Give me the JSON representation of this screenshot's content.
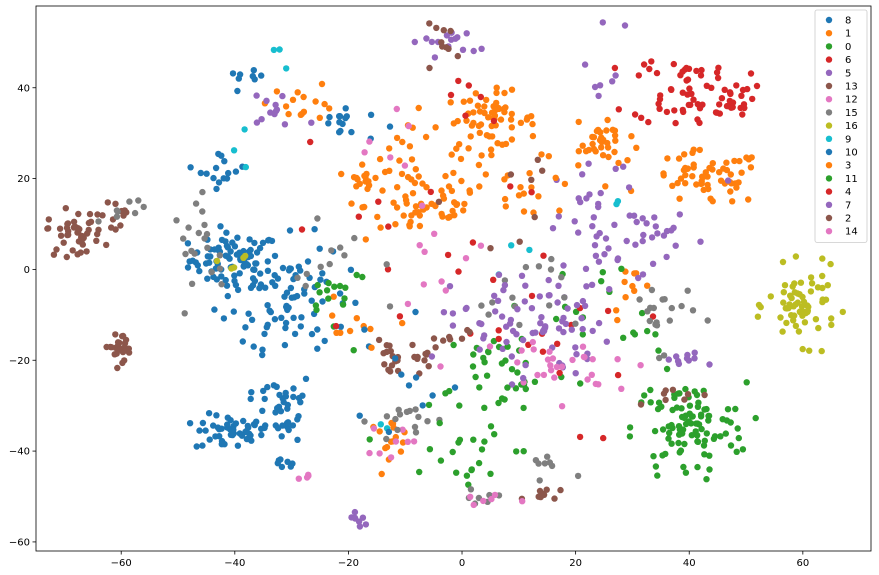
{
  "chart_data": {
    "type": "scatter",
    "title": "",
    "xlabel": "",
    "ylabel": "",
    "xlim": [
      -75,
      72
    ],
    "ylim": [
      -62,
      58
    ],
    "xticks": [
      -60,
      -40,
      -20,
      0,
      20,
      40,
      60
    ],
    "yticks": [
      -60,
      -40,
      -20,
      0,
      20,
      40
    ],
    "grid": false,
    "legend_position": "top-right",
    "series": [
      {
        "name": "8",
        "color": "#1f77b4",
        "clusters": [
          {
            "cx": -40,
            "cy": 2,
            "sx": 4,
            "sy": 3,
            "n": 80
          },
          {
            "cx": -41,
            "cy": -36,
            "sx": 3,
            "sy": 2,
            "n": 45
          },
          {
            "cx": -32,
            "cy": -30,
            "sx": 3,
            "sy": 4,
            "n": 40
          },
          {
            "cx": -30,
            "cy": -5,
            "sx": 5,
            "sy": 6,
            "n": 55
          },
          {
            "cx": -21,
            "cy": 32,
            "sx": 3,
            "sy": 2,
            "n": 15
          },
          {
            "cx": -31,
            "cy": -41,
            "sx": 1,
            "sy": 2,
            "n": 8
          },
          {
            "cx": -42,
            "cy": 22,
            "sx": 2,
            "sy": 2,
            "n": 15
          },
          {
            "cx": -38,
            "cy": 42,
            "sx": 1.5,
            "sy": 0.8,
            "n": 8
          }
        ]
      },
      {
        "name": "1",
        "color": "#ff7f0e",
        "clusters": [
          {
            "cx": 5,
            "cy": 33,
            "sx": 4,
            "sy": 3,
            "n": 60
          },
          {
            "cx": -7,
            "cy": 14,
            "sx": 5,
            "sy": 4,
            "n": 45
          },
          {
            "cx": 43,
            "cy": 20,
            "sx": 5,
            "sy": 3,
            "n": 60
          },
          {
            "cx": 25,
            "cy": 28,
            "sx": 2,
            "sy": 2,
            "n": 25
          },
          {
            "cx": -17,
            "cy": 20,
            "sx": 1.5,
            "sy": 1,
            "n": 12
          },
          {
            "cx": -28,
            "cy": 37,
            "sx": 3,
            "sy": 2,
            "n": 15
          },
          {
            "cx": -10,
            "cy": 26,
            "sx": 4,
            "sy": 4,
            "n": 15
          },
          {
            "cx": 30,
            "cy": -5,
            "sx": 2,
            "sy": 3,
            "n": 10
          },
          {
            "cx": -13,
            "cy": -37,
            "sx": 2,
            "sy": 2,
            "n": 15
          },
          {
            "cx": 10,
            "cy": 18,
            "sx": 3,
            "sy": 3,
            "n": 12
          },
          {
            "cx": -20,
            "cy": -15,
            "sx": 3,
            "sy": 4,
            "n": 10
          }
        ]
      },
      {
        "name": "0",
        "color": "#2ca02c",
        "clusters": [
          {
            "cx": 40,
            "cy": -35,
            "sx": 5,
            "sy": 5,
            "n": 80
          },
          {
            "cx": 8,
            "cy": -22,
            "sx": 6,
            "sy": 5,
            "n": 30
          },
          {
            "cx": -22,
            "cy": -4,
            "sx": 3,
            "sy": 3,
            "n": 15
          },
          {
            "cx": 0,
            "cy": -45,
            "sx": 4,
            "sy": 4,
            "n": 12
          },
          {
            "cx": 30,
            "cy": -15,
            "sx": 3,
            "sy": 3,
            "n": 8
          },
          {
            "cx": 20,
            "cy": -5,
            "sx": 5,
            "sy": 5,
            "n": 10
          }
        ]
      },
      {
        "name": "6",
        "color": "#d62728",
        "clusters": [
          {
            "cx": 40,
            "cy": 40,
            "sx": 5,
            "sy": 4,
            "n": 50
          },
          {
            "cx": 47,
            "cy": 37,
            "sx": 2,
            "sy": 1.5,
            "n": 15
          },
          {
            "cx": 10,
            "cy": -15,
            "sx": 10,
            "sy": 12,
            "n": 20
          },
          {
            "cx": -10,
            "cy": 5,
            "sx": 10,
            "sy": 12,
            "n": 12
          }
        ]
      },
      {
        "name": "5",
        "color": "#9467bd",
        "clusters": [
          {
            "cx": 12,
            "cy": -12,
            "sx": 7,
            "sy": 6,
            "n": 60
          },
          {
            "cx": 25,
            "cy": 8,
            "sx": 4,
            "sy": 8,
            "n": 25
          },
          {
            "cx": 39,
            "cy": -20,
            "sx": 2,
            "sy": 1,
            "n": 10
          },
          {
            "cx": -18,
            "cy": -55,
            "sx": 1,
            "sy": 1,
            "n": 8
          },
          {
            "cx": -32,
            "cy": 35,
            "sx": 4,
            "sy": 3,
            "n": 12
          },
          {
            "cx": 35,
            "cy": 8,
            "sx": 2,
            "sy": 2,
            "n": 12
          },
          {
            "cx": -3,
            "cy": 50,
            "sx": 3,
            "sy": 1.5,
            "n": 15
          }
        ]
      },
      {
        "name": "13",
        "color": "#8c564b",
        "clusters": [
          {
            "cx": -68,
            "cy": 8,
            "sx": 2.5,
            "sy": 2.5,
            "n": 45
          },
          {
            "cx": -60,
            "cy": -17,
            "sx": 1.5,
            "sy": 1.5,
            "n": 25
          },
          {
            "cx": -13,
            "cy": -20,
            "sx": 1,
            "sy": 2,
            "n": 15
          },
          {
            "cx": -7,
            "cy": -19,
            "sx": 1,
            "sy": 1.5,
            "n": 10
          },
          {
            "cx": 15,
            "cy": -50,
            "sx": 2,
            "sy": 1,
            "n": 10
          },
          {
            "cx": -60,
            "cy": 12,
            "sx": 2,
            "sy": 2,
            "n": 10
          },
          {
            "cx": -3,
            "cy": 50,
            "sx": 2,
            "sy": 2,
            "n": 10
          },
          {
            "cx": 40,
            "cy": -28,
            "sx": 3,
            "sy": 1,
            "n": 8
          }
        ]
      },
      {
        "name": "12",
        "color": "#e377c2",
        "clusters": [
          {
            "cx": 15,
            "cy": -22,
            "sx": 5,
            "sy": 4,
            "n": 20
          },
          {
            "cx": -12,
            "cy": -37,
            "sx": 2,
            "sy": 2,
            "n": 8
          },
          {
            "cx": -5,
            "cy": 3,
            "sx": 5,
            "sy": 5,
            "n": 10
          },
          {
            "cx": -28,
            "cy": -46,
            "sx": 0.8,
            "sy": 0.5,
            "n": 4
          }
        ]
      },
      {
        "name": "15",
        "color": "#7f7f7f",
        "clusters": [
          {
            "cx": -45,
            "cy": 5,
            "sx": 3,
            "sy": 5,
            "n": 20
          },
          {
            "cx": -10,
            "cy": -33,
            "sx": 3,
            "sy": 2,
            "n": 15
          },
          {
            "cx": 35,
            "cy": -10,
            "sx": 3,
            "sy": 4,
            "n": 20
          },
          {
            "cx": 10,
            "cy": -5,
            "sx": 5,
            "sy": 5,
            "n": 15
          },
          {
            "cx": -60,
            "cy": 13,
            "sx": 2,
            "sy": 2,
            "n": 8
          },
          {
            "cx": -20,
            "cy": 0,
            "sx": 5,
            "sy": 5,
            "n": 12
          },
          {
            "cx": 15,
            "cy": -44,
            "sx": 2,
            "sy": 2,
            "n": 8
          },
          {
            "cx": 3,
            "cy": -50,
            "sx": 2,
            "sy": 1.5,
            "n": 8
          }
        ]
      },
      {
        "name": "16",
        "color": "#bcbd22",
        "clusters": [
          {
            "cx": 60,
            "cy": -8,
            "sx": 3,
            "sy": 4,
            "n": 65
          },
          {
            "cx": -40,
            "cy": 1,
            "sx": 2,
            "sy": 2,
            "n": 5
          }
        ]
      },
      {
        "name": "9",
        "color": "#17becf",
        "clusters": [
          {
            "cx": -32,
            "cy": 47,
            "sx": 1,
            "sy": 2,
            "n": 3
          },
          {
            "cx": -40,
            "cy": 25,
            "sx": 2,
            "sy": 2,
            "n": 3
          },
          {
            "cx": 10,
            "cy": 3,
            "sx": 3,
            "sy": 3,
            "n": 3
          },
          {
            "cx": -14,
            "cy": -35,
            "sx": 1,
            "sy": 1,
            "n": 2
          },
          {
            "cx": 27,
            "cy": 14,
            "sx": 1,
            "sy": 1,
            "n": 2
          }
        ]
      },
      {
        "name": "10",
        "color": "#1f77b4",
        "clusters": [
          {
            "cx": -35,
            "cy": -10,
            "sx": 6,
            "sy": 8,
            "n": 30
          },
          {
            "cx": -10,
            "cy": -30,
            "sx": 6,
            "sy": 8,
            "n": 10
          }
        ]
      },
      {
        "name": "3",
        "color": "#ff7f0e",
        "clusters": [
          {
            "cx": 0,
            "cy": 20,
            "sx": 8,
            "sy": 6,
            "n": 30
          },
          {
            "cx": 25,
            "cy": 25,
            "sx": 3,
            "sy": 3,
            "n": 10
          }
        ]
      },
      {
        "name": "11",
        "color": "#2ca02c",
        "clusters": [
          {
            "cx": 38,
            "cy": -35,
            "sx": 4,
            "sy": 5,
            "n": 20
          },
          {
            "cx": 5,
            "cy": -28,
            "sx": 8,
            "sy": 8,
            "n": 20
          }
        ]
      },
      {
        "name": "4",
        "color": "#d62728",
        "clusters": [
          {
            "cx": 40,
            "cy": 38,
            "sx": 5,
            "sy": 4,
            "n": 10
          },
          {
            "cx": 0,
            "cy": 40,
            "sx": 3,
            "sy": 4,
            "n": 6
          }
        ]
      },
      {
        "name": "7",
        "color": "#9467bd",
        "clusters": [
          {
            "cx": 25,
            "cy": 45,
            "sx": 2,
            "sy": 6,
            "n": 8
          },
          {
            "cx": 30,
            "cy": 10,
            "sx": 8,
            "sy": 8,
            "n": 20
          },
          {
            "cx": 10,
            "cy": -10,
            "sx": 6,
            "sy": 6,
            "n": 20
          }
        ]
      },
      {
        "name": "2",
        "color": "#8c564b",
        "clusters": [
          {
            "cx": -5,
            "cy": -17,
            "sx": 3,
            "sy": 3,
            "n": 8
          },
          {
            "cx": 10,
            "cy": 15,
            "sx": 6,
            "sy": 6,
            "n": 8
          }
        ]
      },
      {
        "name": "14",
        "color": "#e377c2",
        "clusters": [
          {
            "cx": 20,
            "cy": -20,
            "sx": 4,
            "sy": 4,
            "n": 10
          },
          {
            "cx": -15,
            "cy": 25,
            "sx": 5,
            "sy": 5,
            "n": 6
          },
          {
            "cx": 5,
            "cy": -50,
            "sx": 2,
            "sy": 1,
            "n": 6
          }
        ]
      }
    ]
  }
}
